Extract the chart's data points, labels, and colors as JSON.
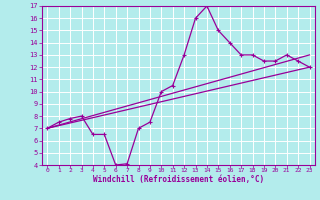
{
  "xlabel": "Windchill (Refroidissement éolien,°C)",
  "bg_color": "#b3ecec",
  "axis_bg_color": "#b3ecec",
  "line_color": "#990099",
  "grid_color": "#ffffff",
  "border_color": "#990099",
  "xlim": [
    -0.5,
    23.5
  ],
  "ylim": [
    4,
    17
  ],
  "xticks": [
    0,
    1,
    2,
    3,
    4,
    5,
    6,
    7,
    8,
    9,
    10,
    11,
    12,
    13,
    14,
    15,
    16,
    17,
    18,
    19,
    20,
    21,
    22,
    23
  ],
  "yticks": [
    4,
    5,
    6,
    7,
    8,
    9,
    10,
    11,
    12,
    13,
    14,
    15,
    16,
    17
  ],
  "curve1_x": [
    0,
    1,
    2,
    3,
    4,
    5,
    6,
    7,
    8,
    9,
    10,
    11,
    12,
    13,
    14,
    15,
    16,
    17,
    18,
    19,
    20,
    21,
    22,
    23
  ],
  "curve1_y": [
    7.0,
    7.5,
    7.8,
    8.0,
    6.5,
    6.5,
    4.0,
    4.1,
    7.0,
    7.5,
    10.0,
    10.5,
    13.0,
    16.0,
    17.0,
    15.0,
    14.0,
    13.0,
    13.0,
    12.5,
    12.5,
    13.0,
    12.5,
    12.0
  ],
  "curve2_x": [
    0,
    23
  ],
  "curve2_y": [
    7.0,
    12.0
  ],
  "curve3_x": [
    0,
    23
  ],
  "curve3_y": [
    7.0,
    13.0
  ],
  "marker": "+"
}
